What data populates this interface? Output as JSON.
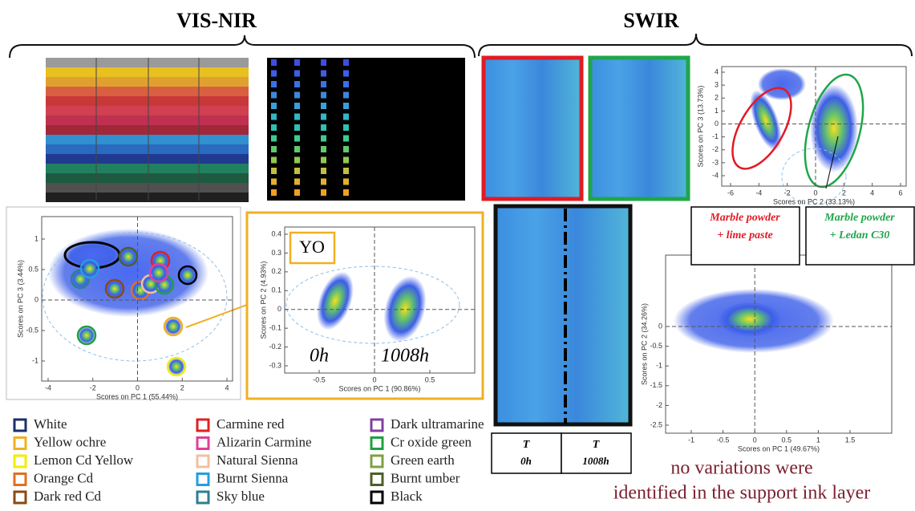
{
  "headers": {
    "vis_nir": "VIS-NIR",
    "swir": "SWIR"
  },
  "plots": [
    {
      "y_label": "Scores on PC 3 (13.73%)",
      "x_label": "Scores on PC 2 (33.13%)",
      "xticks": [
        -6,
        -4,
        -2,
        0,
        2,
        4,
        6
      ],
      "yticks": [
        4,
        3,
        2,
        1,
        0,
        -1,
        -2,
        -3,
        -4
      ]
    },
    {
      "y_label": "Scores on PC 3 (3.44%)",
      "x_label": "Scores on PC 1 (55.44%)",
      "xticks": [
        -4,
        -2,
        0,
        2,
        4
      ],
      "yticks": [
        1,
        0.5,
        0,
        -0.5,
        -1
      ]
    },
    {
      "y_label": "Scores on PC 2 (4.93%)",
      "x_label": "Scores on PC 1 (90.86%)",
      "xticks": [
        -0.5,
        0,
        0.5
      ],
      "yticks": [
        0.4,
        0.3,
        0.2,
        0.1,
        0,
        -0.1,
        -0.2,
        -0.3
      ]
    },
    {
      "y_label": "Scores on PC 2 (34.26%)",
      "x_label": "Scores on PC 1 (49.67%)",
      "xticks": [
        -1,
        -0.5,
        0,
        0.5,
        1,
        1.5
      ],
      "yticks": [
        0,
        -0.5,
        -1,
        -1.5,
        -2,
        -2.5
      ]
    }
  ],
  "yo_plot": {
    "badge": "YO",
    "groups": [
      "0h",
      "1008h"
    ]
  },
  "boxes": [
    {
      "line1": "Marble powder",
      "line2": "+ lime paste",
      "color": "#e01b24"
    },
    {
      "line1": "Marble powder",
      "line2": "+ Ledan C30",
      "color": "#1fa64a"
    }
  ],
  "time_table": [
    {
      "symbol": "T",
      "time": "0h"
    },
    {
      "symbol": "T",
      "time": "1008h"
    }
  ],
  "note": [
    "no variations were",
    "identified in the support ink layer"
  ],
  "legend": [
    {
      "label": "White",
      "color": "#1b2f6b"
    },
    {
      "label": "Yellow ochre",
      "color": "#f0b020"
    },
    {
      "label": "Lemon Cd Yellow",
      "color": "#f2ee00"
    },
    {
      "label": "Orange Cd",
      "color": "#e07020"
    },
    {
      "label": "Dark red Cd",
      "color": "#8b4a13"
    },
    {
      "label": "Carmine red",
      "color": "#e02020"
    },
    {
      "label": "Alizarin Carmine",
      "color": "#e0409a"
    },
    {
      "label": "Natural Sienna",
      "color": "#f0c0a0"
    },
    {
      "label": "Burnt Sienna",
      "color": "#20a0e0"
    },
    {
      "label": "Sky blue",
      "color": "#2e7f90"
    },
    {
      "label": "Dark ultramarine",
      "color": "#8040a0"
    },
    {
      "label": "Cr oxide green",
      "color": "#20a040"
    },
    {
      "label": "Green earth",
      "color": "#80a040"
    },
    {
      "label": "Burnt umber",
      "color": "#4e5e2e"
    },
    {
      "label": "Black",
      "color": "#000000"
    }
  ]
}
